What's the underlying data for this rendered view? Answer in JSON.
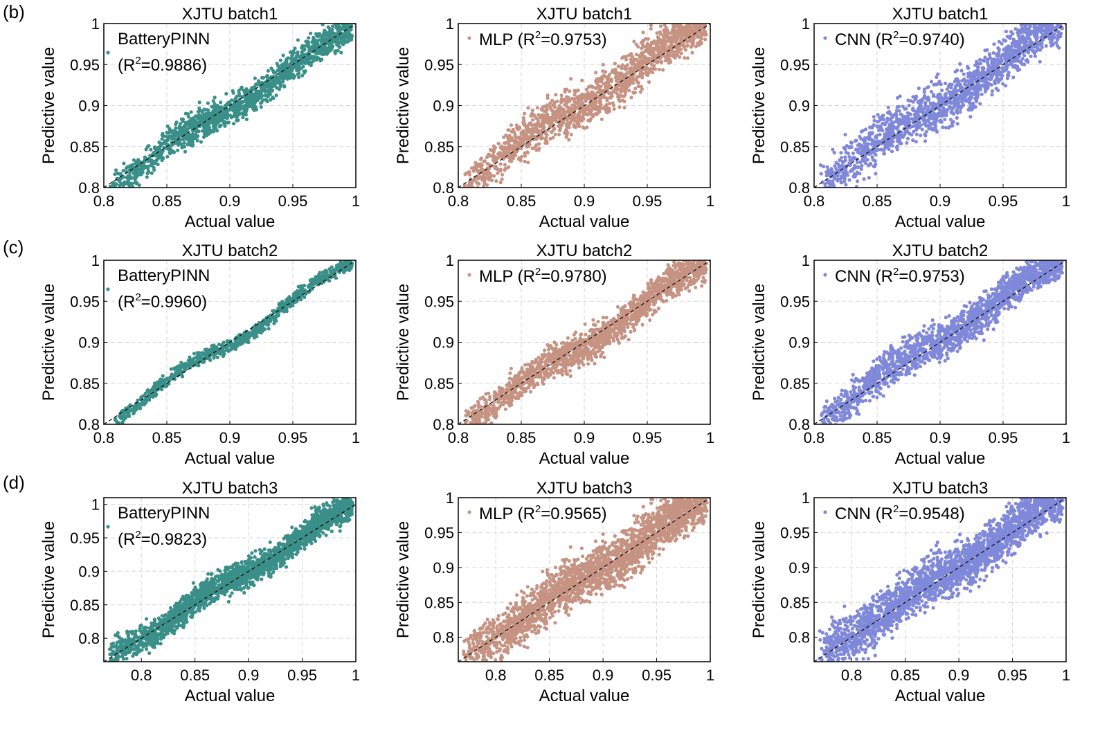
{
  "row_labels": [
    "(b)",
    "(c)",
    "(d)"
  ],
  "colors": {
    "pinn": "#3a8f89",
    "mlp": "#c69383",
    "cnn": "#8088da"
  },
  "chart_data": [
    {
      "type": "scatter",
      "title": "XJTU batch1",
      "xlabel": "Actual value",
      "ylabel": "Predictive value",
      "xlim": [
        0.8,
        1
      ],
      "ylim": [
        0.8,
        1
      ],
      "xticks": [
        "0.8",
        "0.85",
        "0.9",
        "0.95",
        "1"
      ],
      "yticks": [
        "0.8",
        "0.85",
        "0.9",
        "0.95",
        "1"
      ],
      "model": "BatteryPINN",
      "r2": "0.9886",
      "series": [
        {
          "name": "BatteryPINN",
          "color_key": "pinn",
          "spread": 0.009,
          "bias": -0.003,
          "n": 1500
        }
      ]
    },
    {
      "type": "scatter",
      "title": "XJTU batch1",
      "xlabel": "Actual value",
      "ylabel": "Predictive value",
      "xlim": [
        0.8,
        1
      ],
      "ylim": [
        0.8,
        1
      ],
      "xticks": [
        "0.8",
        "0.85",
        "0.9",
        "0.95",
        "1"
      ],
      "yticks": [
        "0.8",
        "0.85",
        "0.9",
        "0.95",
        "1"
      ],
      "model": "MLP",
      "r2": "0.9753",
      "series": [
        {
          "name": "MLP",
          "color_key": "mlp",
          "spread": 0.013,
          "bias": 0.004,
          "n": 1600
        }
      ]
    },
    {
      "type": "scatter",
      "title": "XJTU batch1",
      "xlabel": "Actual value",
      "ylabel": "Predictive value",
      "xlim": [
        0.8,
        1
      ],
      "ylim": [
        0.8,
        1
      ],
      "xticks": [
        "0.8",
        "0.85",
        "0.9",
        "0.95",
        "1"
      ],
      "yticks": [
        "0.8",
        "0.85",
        "0.9",
        "0.95",
        "1"
      ],
      "model": "CNN",
      "r2": "0.9740",
      "series": [
        {
          "name": "CNN",
          "color_key": "cnn",
          "spread": 0.014,
          "bias": 0.003,
          "n": 1600
        }
      ]
    },
    {
      "type": "scatter",
      "title": "XJTU batch2",
      "xlabel": "Actual value",
      "ylabel": "Predictive value",
      "xlim": [
        0.8,
        1
      ],
      "ylim": [
        0.8,
        1
      ],
      "xticks": [
        "0.8",
        "0.85",
        "0.9",
        "0.95",
        "1"
      ],
      "yticks": [
        "0.8",
        "0.85",
        "0.9",
        "0.95",
        "1"
      ],
      "model": "BatteryPINN",
      "r2": "0.9960",
      "series": [
        {
          "name": "BatteryPINN",
          "color_key": "pinn",
          "spread": 0.004,
          "bias": 0.0,
          "n": 900
        }
      ]
    },
    {
      "type": "scatter",
      "title": "XJTU batch2",
      "xlabel": "Actual value",
      "ylabel": "Predictive value",
      "xlim": [
        0.8,
        1
      ],
      "ylim": [
        0.8,
        1
      ],
      "xticks": [
        "0.8",
        "0.85",
        "0.9",
        "0.95",
        "1"
      ],
      "yticks": [
        "0.8",
        "0.85",
        "0.9",
        "0.95",
        "1"
      ],
      "model": "MLP",
      "r2": "0.9780",
      "series": [
        {
          "name": "MLP",
          "color_key": "mlp",
          "spread": 0.01,
          "bias": -0.002,
          "n": 1700
        }
      ]
    },
    {
      "type": "scatter",
      "title": "XJTU batch2",
      "xlabel": "Actual value",
      "ylabel": "Predictive value",
      "xlim": [
        0.8,
        1
      ],
      "ylim": [
        0.8,
        1
      ],
      "xticks": [
        "0.8",
        "0.85",
        "0.9",
        "0.95",
        "1"
      ],
      "yticks": [
        "0.8",
        "0.85",
        "0.9",
        "0.95",
        "1"
      ],
      "model": "CNN",
      "r2": "0.9753",
      "series": [
        {
          "name": "CNN",
          "color_key": "cnn",
          "spread": 0.011,
          "bias": 0.004,
          "n": 1700
        }
      ]
    },
    {
      "type": "scatter",
      "title": "XJTU batch3",
      "xlabel": "Actual value",
      "ylabel": "Predictive value",
      "xlim": [
        0.765,
        1.0
      ],
      "ylim": [
        0.765,
        1.01
      ],
      "xticks": [
        "0.8",
        "0.85",
        "0.9",
        "0.95",
        "1"
      ],
      "yticks": [
        "0.8",
        "0.85",
        "0.9",
        "0.95",
        "1"
      ],
      "model": "BatteryPINN",
      "r2": "0.9823",
      "series": [
        {
          "name": "BatteryPINN",
          "color_key": "pinn",
          "spread": 0.01,
          "bias": 0.002,
          "n": 2200
        }
      ]
    },
    {
      "type": "scatter",
      "title": "XJTU batch3",
      "xlabel": "Actual value",
      "ylabel": "Predictive value",
      "xlim": [
        0.765,
        1.0
      ],
      "ylim": [
        0.765,
        1.0
      ],
      "xticks": [
        "0.8",
        "0.85",
        "0.9",
        "0.95",
        "1"
      ],
      "yticks": [
        "0.8",
        "0.85",
        "0.9",
        "0.95",
        "1"
      ],
      "model": "MLP",
      "r2": "0.9565",
      "series": [
        {
          "name": "MLP",
          "color_key": "mlp",
          "spread": 0.017,
          "bias": 0.003,
          "n": 2400
        }
      ]
    },
    {
      "type": "scatter",
      "title": "XJTU batch3",
      "xlabel": "Actual value",
      "ylabel": "Predictive value",
      "xlim": [
        0.765,
        1.0
      ],
      "ylim": [
        0.765,
        1.0
      ],
      "xticks": [
        "0.8",
        "0.85",
        "0.9",
        "0.95",
        "1"
      ],
      "yticks": [
        "0.8",
        "0.85",
        "0.9",
        "0.95",
        "1"
      ],
      "model": "CNN",
      "r2": "0.9548",
      "series": [
        {
          "name": "CNN",
          "color_key": "cnn",
          "spread": 0.017,
          "bias": 0.004,
          "n": 2400
        }
      ]
    }
  ]
}
